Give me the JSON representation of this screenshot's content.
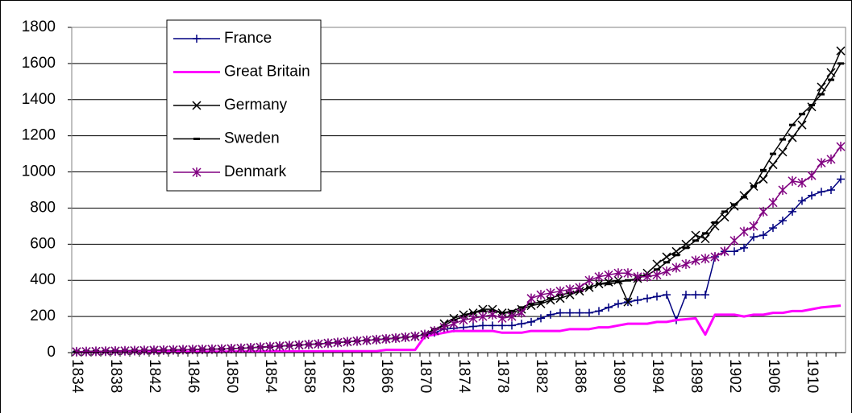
{
  "chart_data": {
    "type": "line",
    "categories": [
      1834,
      null,
      null,
      null,
      1838,
      null,
      null,
      null,
      1842,
      null,
      null,
      null,
      1846,
      null,
      null,
      null,
      1850,
      null,
      null,
      null,
      1854,
      null,
      null,
      null,
      1858,
      null,
      null,
      null,
      1862,
      null,
      null,
      null,
      1866,
      null,
      null,
      null,
      1870,
      null,
      null,
      null,
      1874,
      null,
      null,
      null,
      1878,
      null,
      null,
      null,
      1882,
      null,
      null,
      null,
      1886,
      null,
      null,
      null,
      1890,
      null,
      null,
      null,
      1894,
      null,
      null,
      null,
      1898,
      null,
      null,
      null,
      1902,
      null,
      null,
      null,
      1906,
      null,
      null,
      null,
      1910,
      null,
      null,
      null
    ],
    "ylim": [
      0,
      1800
    ],
    "yticks": [
      0,
      200,
      400,
      600,
      800,
      1000,
      1200,
      1400,
      1600,
      1800
    ],
    "grid": true,
    "series": [
      {
        "name": "France",
        "color": "#000080",
        "marker": "plus",
        "line_width": 1.5,
        "values": [
          5,
          6,
          7,
          8,
          9,
          10,
          11,
          12,
          13,
          14,
          15,
          16,
          17,
          18,
          19,
          20,
          22,
          24,
          27,
          30,
          33,
          36,
          39,
          42,
          45,
          48,
          52,
          56,
          60,
          64,
          68,
          72,
          76,
          80,
          85,
          90,
          100,
          110,
          130,
          135,
          140,
          145,
          150,
          150,
          150,
          150,
          160,
          170,
          190,
          210,
          220,
          220,
          220,
          220,
          230,
          250,
          270,
          280,
          290,
          300,
          310,
          320,
          180,
          320,
          320,
          320,
          530,
          560,
          560,
          580,
          640,
          650,
          690,
          730,
          780,
          840,
          870,
          890,
          900,
          960
        ]
      },
      {
        "name": "Great Britain",
        "color": "#ff00ff",
        "marker": "none",
        "line_width": 3,
        "values": [
          3,
          3,
          3,
          3,
          4,
          4,
          4,
          4,
          4,
          5,
          5,
          5,
          5,
          5,
          5,
          5,
          6,
          6,
          6,
          6,
          6,
          7,
          7,
          7,
          7,
          7,
          8,
          8,
          8,
          8,
          8,
          8,
          15,
          15,
          15,
          15,
          90,
          100,
          110,
          120,
          120,
          120,
          120,
          120,
          110,
          110,
          110,
          120,
          120,
          120,
          120,
          130,
          130,
          130,
          140,
          140,
          150,
          160,
          160,
          160,
          170,
          170,
          180,
          185,
          190,
          100,
          210,
          210,
          210,
          200,
          210,
          210,
          220,
          220,
          230,
          230,
          240,
          250,
          255,
          260
        ]
      },
      {
        "name": "Germany",
        "color": "#000000",
        "marker": "x",
        "line_width": 1.5,
        "values": [
          5,
          6,
          7,
          8,
          9,
          10,
          11,
          12,
          13,
          14,
          15,
          16,
          17,
          18,
          19,
          20,
          22,
          24,
          27,
          30,
          33,
          36,
          39,
          42,
          45,
          48,
          52,
          56,
          60,
          64,
          68,
          72,
          76,
          80,
          85,
          90,
          100,
          120,
          160,
          190,
          210,
          220,
          240,
          240,
          220,
          220,
          240,
          260,
          270,
          290,
          300,
          320,
          340,
          360,
          380,
          390,
          400,
          280,
          410,
          440,
          490,
          530,
          560,
          600,
          650,
          630,
          700,
          750,
          810,
          870,
          920,
          960,
          1040,
          1110,
          1190,
          1260,
          1360,
          1470,
          1550,
          1670
        ]
      },
      {
        "name": "Sweden",
        "color": "#000000",
        "marker": "dash",
        "line_width": 1.5,
        "values": [
          5,
          6,
          7,
          8,
          9,
          10,
          11,
          12,
          13,
          14,
          15,
          16,
          17,
          18,
          19,
          20,
          22,
          24,
          27,
          30,
          33,
          36,
          39,
          42,
          45,
          48,
          52,
          56,
          60,
          64,
          68,
          72,
          76,
          80,
          85,
          90,
          100,
          130,
          150,
          180,
          200,
          220,
          230,
          230,
          220,
          230,
          250,
          270,
          280,
          300,
          320,
          330,
          340,
          360,
          380,
          380,
          390,
          400,
          410,
          430,
          460,
          500,
          540,
          580,
          620,
          660,
          720,
          780,
          820,
          860,
          920,
          1010,
          1100,
          1180,
          1260,
          1320,
          1370,
          1430,
          1510,
          1600
        ]
      },
      {
        "name": "Denmark",
        "color": "#800080",
        "marker": "star",
        "line_width": 1.5,
        "values": [
          5,
          6,
          7,
          8,
          9,
          10,
          11,
          12,
          13,
          14,
          15,
          16,
          17,
          18,
          19,
          20,
          22,
          24,
          27,
          30,
          33,
          36,
          39,
          42,
          45,
          48,
          52,
          56,
          60,
          64,
          68,
          72,
          76,
          80,
          85,
          90,
          100,
          120,
          140,
          160,
          180,
          190,
          200,
          210,
          190,
          200,
          220,
          300,
          320,
          330,
          340,
          350,
          360,
          400,
          420,
          430,
          440,
          440,
          420,
          420,
          430,
          450,
          470,
          490,
          510,
          520,
          530,
          560,
          620,
          670,
          700,
          780,
          830,
          900,
          950,
          940,
          980,
          1050,
          1070,
          1140
        ]
      }
    ]
  }
}
